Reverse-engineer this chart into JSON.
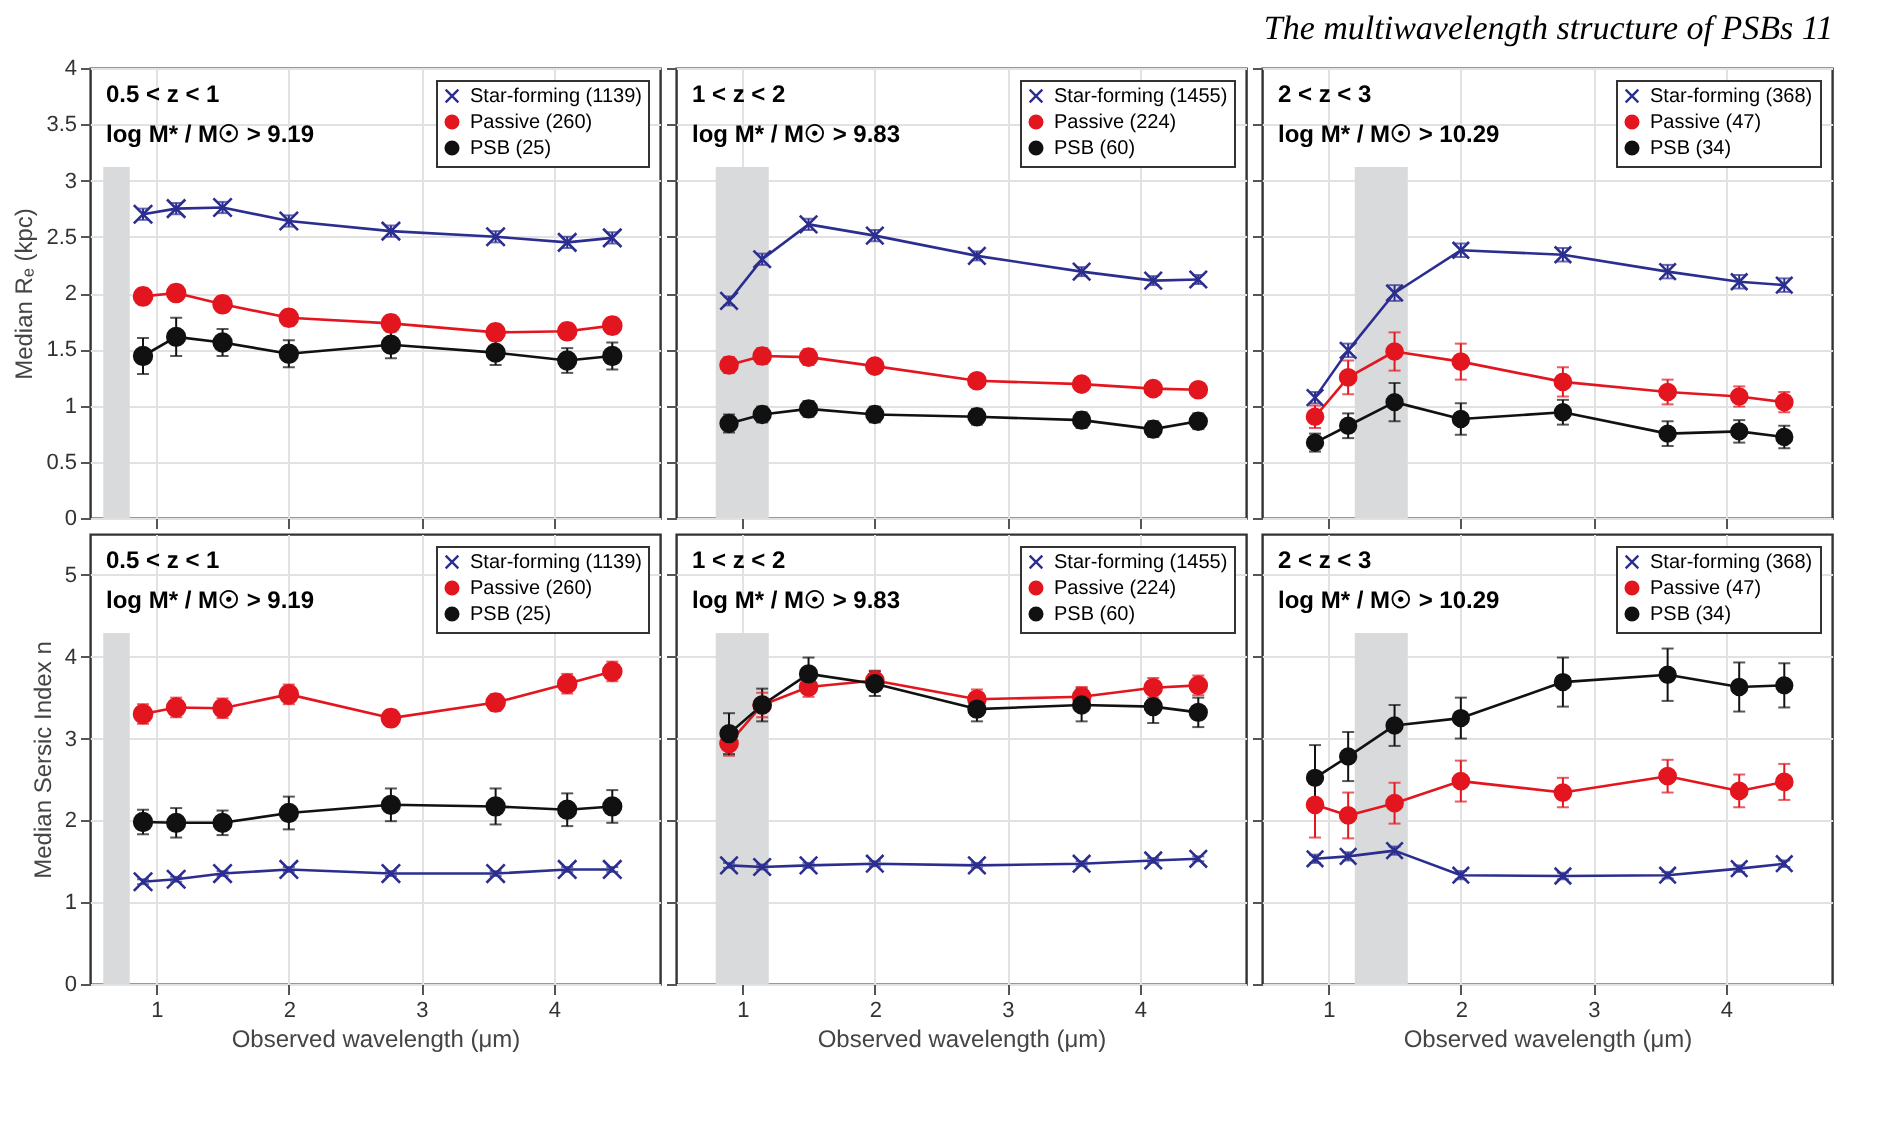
{
  "chart_data": [
    {
      "type": "line",
      "annotations": [
        "The multiwavelength structure of PSBs",
        "11",
        "0.5 < z < 1",
        "log M* / M☉ > 9.19"
      ],
      "ylabel": "Median Rₑ (kpc)",
      "x": [
        0.9,
        1.15,
        1.5,
        2.0,
        2.77,
        3.56,
        4.1,
        4.44
      ],
      "xlim": [
        0.5,
        4.8
      ],
      "xticks": [
        1,
        2,
        3,
        4
      ],
      "ylim": [
        0,
        4
      ],
      "yticks": [
        0,
        0.5,
        1,
        1.5,
        2,
        2.5,
        3,
        3.5,
        4
      ],
      "grid": true,
      "legend": "top right",
      "tick_labels": "y",
      "bands": [
        {
          "axis": "x",
          "from": 0.6,
          "to": 0.8,
          "color": "#d9dadc"
        }
      ],
      "series": [
        {
          "name": "Star-forming (1139)",
          "color": "#2b2e8f",
          "marker": "cross",
          "values": [
            2.7,
            2.75,
            2.76,
            2.64,
            2.55,
            2.5,
            2.45,
            2.49
          ],
          "errors": [
            0.05,
            0.05,
            0.05,
            0.05,
            0.05,
            0.05,
            0.05,
            0.05
          ]
        },
        {
          "name": "Passive (260)",
          "color": "#e3161f",
          "marker": "circle",
          "values": [
            1.97,
            2.0,
            1.9,
            1.78,
            1.73,
            1.65,
            1.66,
            1.71
          ],
          "errors": [
            0.07,
            0.07,
            0.07,
            0.07,
            0.07,
            0.07,
            0.07,
            0.07
          ]
        },
        {
          "name": "PSB (25)",
          "color": "#111111",
          "marker": "circle",
          "values": [
            1.44,
            1.61,
            1.56,
            1.46,
            1.54,
            1.47,
            1.4,
            1.44
          ],
          "errors": [
            0.16,
            0.17,
            0.12,
            0.12,
            0.12,
            0.11,
            0.11,
            0.12
          ]
        }
      ]
    },
    {
      "type": "line",
      "annotations": [
        "1 < z < 2",
        "log M* / M☉ > 9.83"
      ],
      "x": [
        0.9,
        1.15,
        1.5,
        2.0,
        2.77,
        3.56,
        4.1,
        4.44
      ],
      "xlim": [
        0.5,
        4.8
      ],
      "xticks": [
        1,
        2,
        3,
        4
      ],
      "ylim": [
        0,
        4
      ],
      "yticks": [
        0,
        0.5,
        1,
        1.5,
        2,
        2.5,
        3,
        3.5,
        4
      ],
      "grid": true,
      "legend": "top right",
      "tick_labels": false,
      "bands": [
        {
          "axis": "x",
          "from": 0.8,
          "to": 1.2,
          "color": "#d9dadc"
        }
      ],
      "series": [
        {
          "name": "Star-forming (1455)",
          "color": "#2b2e8f",
          "marker": "cross",
          "values": [
            1.93,
            2.3,
            2.61,
            2.51,
            2.33,
            2.19,
            2.11,
            2.12
          ],
          "errors": [
            0.04,
            0.05,
            0.05,
            0.05,
            0.04,
            0.04,
            0.04,
            0.04
          ]
        },
        {
          "name": "Passive (224)",
          "color": "#e3161f",
          "marker": "circle",
          "values": [
            1.36,
            1.44,
            1.43,
            1.35,
            1.22,
            1.19,
            1.15,
            1.14
          ],
          "errors": [
            0.07,
            0.07,
            0.07,
            0.06,
            0.06,
            0.05,
            0.05,
            0.05
          ]
        },
        {
          "name": "PSB (60)",
          "color": "#111111",
          "marker": "circle",
          "values": [
            0.84,
            0.92,
            0.97,
            0.92,
            0.9,
            0.87,
            0.79,
            0.86
          ],
          "errors": [
            0.08,
            0.07,
            0.07,
            0.07,
            0.07,
            0.07,
            0.07,
            0.07
          ]
        }
      ]
    },
    {
      "type": "line",
      "annotations": [
        "2 < z < 3",
        "log M* / M☉ > 10.29"
      ],
      "x": [
        0.9,
        1.15,
        1.5,
        2.0,
        2.77,
        3.56,
        4.1,
        4.44
      ],
      "xlim": [
        0.5,
        4.8
      ],
      "xticks": [
        1,
        2,
        3,
        4
      ],
      "ylim": [
        0,
        4
      ],
      "yticks": [
        0,
        0.5,
        1,
        1.5,
        2,
        2.5,
        3,
        3.5,
        4
      ],
      "grid": true,
      "legend": "top right",
      "tick_labels": false,
      "bands": [
        {
          "axis": "x",
          "from": 1.2,
          "to": 1.6,
          "color": "#d9dadc"
        }
      ],
      "series": [
        {
          "name": "Star-forming (368)",
          "color": "#2b2e8f",
          "marker": "cross",
          "values": [
            1.07,
            1.49,
            2.0,
            2.38,
            2.34,
            2.19,
            2.1,
            2.07
          ],
          "errors": [
            0.05,
            0.06,
            0.07,
            0.06,
            0.06,
            0.06,
            0.06,
            0.06
          ]
        },
        {
          "name": "Passive (47)",
          "color": "#e3161f",
          "marker": "circle",
          "values": [
            0.9,
            1.25,
            1.48,
            1.39,
            1.21,
            1.12,
            1.08,
            1.03
          ],
          "errors": [
            0.1,
            0.15,
            0.17,
            0.16,
            0.13,
            0.11,
            0.09,
            0.09
          ]
        },
        {
          "name": "PSB (34)",
          "color": "#111111",
          "marker": "circle",
          "values": [
            0.67,
            0.82,
            1.03,
            0.88,
            0.94,
            0.75,
            0.77,
            0.72
          ],
          "errors": [
            0.08,
            0.11,
            0.17,
            0.14,
            0.11,
            0.11,
            0.1,
            0.1
          ]
        }
      ]
    },
    {
      "type": "line",
      "annotations": [
        "0.5 < z < 1",
        "log M* / M☉ > 9.19"
      ],
      "ylabel": "Median Sersic Index  n",
      "xlabel": "Observed wavelength (μm)",
      "x": [
        0.9,
        1.15,
        1.5,
        2.0,
        2.77,
        3.56,
        4.1,
        4.44
      ],
      "xlim": [
        0.5,
        4.8
      ],
      "xticks": [
        1,
        2,
        3,
        4
      ],
      "ylim": [
        0,
        5.5
      ],
      "yticks": [
        0,
        1,
        2,
        3,
        4,
        5
      ],
      "grid": true,
      "legend": "top right",
      "bands": [
        {
          "axis": "x",
          "from": 0.6,
          "to": 0.8,
          "color": "#d9dadc"
        }
      ],
      "series": [
        {
          "name": "Star-forming (1139)",
          "color": "#2b2e8f",
          "marker": "cross",
          "values": [
            1.25,
            1.28,
            1.35,
            1.4,
            1.35,
            1.35,
            1.4,
            1.4
          ],
          "errors": [
            0.03,
            0.03,
            0.03,
            0.03,
            0.03,
            0.03,
            0.03,
            0.03
          ]
        },
        {
          "name": "Passive (260)",
          "color": "#e3161f",
          "marker": "circle",
          "values": [
            3.3,
            3.38,
            3.37,
            3.54,
            3.25,
            3.44,
            3.67,
            3.82
          ],
          "errors": [
            0.12,
            0.12,
            0.12,
            0.12,
            0.1,
            0.1,
            0.12,
            0.12
          ]
        },
        {
          "name": "PSB (25)",
          "color": "#111111",
          "marker": "circle",
          "values": [
            1.98,
            1.97,
            1.97,
            2.09,
            2.19,
            2.17,
            2.13,
            2.17
          ],
          "errors": [
            0.15,
            0.18,
            0.15,
            0.2,
            0.2,
            0.22,
            0.2,
            0.2
          ]
        }
      ]
    },
    {
      "type": "line",
      "annotations": [
        "1 < z < 2",
        "log M* / M☉ > 9.83"
      ],
      "xlabel": "Observed wavelength (μm)",
      "x": [
        0.9,
        1.15,
        1.5,
        2.0,
        2.77,
        3.56,
        4.1,
        4.44
      ],
      "xlim": [
        0.5,
        4.8
      ],
      "xticks": [
        1,
        2,
        3,
        4
      ],
      "ylim": [
        0,
        5.5
      ],
      "yticks": [
        0,
        1,
        2,
        3,
        4,
        5
      ],
      "grid": true,
      "legend": "top right",
      "tick_labels": "x",
      "bands": [
        {
          "axis": "x",
          "from": 0.8,
          "to": 1.2,
          "color": "#d9dadc"
        }
      ],
      "series": [
        {
          "name": "Star-forming (1455)",
          "color": "#2b2e8f",
          "marker": "cross",
          "values": [
            1.45,
            1.43,
            1.45,
            1.47,
            1.45,
            1.47,
            1.51,
            1.53
          ],
          "errors": [
            0.03,
            0.03,
            0.03,
            0.03,
            0.03,
            0.03,
            0.03,
            0.03
          ]
        },
        {
          "name": "Passive (224)",
          "color": "#e3161f",
          "marker": "circle",
          "values": [
            2.94,
            3.41,
            3.63,
            3.71,
            3.48,
            3.51,
            3.62,
            3.65
          ],
          "errors": [
            0.15,
            0.15,
            0.12,
            0.12,
            0.12,
            0.12,
            0.12,
            0.12
          ]
        },
        {
          "name": "PSB (60)",
          "color": "#111111",
          "marker": "circle",
          "values": [
            3.06,
            3.41,
            3.79,
            3.67,
            3.36,
            3.41,
            3.39,
            3.32
          ],
          "errors": [
            0.25,
            0.2,
            0.2,
            0.15,
            0.15,
            0.2,
            0.2,
            0.18
          ]
        }
      ]
    },
    {
      "type": "line",
      "annotations": [
        "2 < z < 3",
        "log M* / M☉ > 10.29"
      ],
      "xlabel": "Observed wavelength (μm)",
      "x": [
        0.9,
        1.15,
        1.5,
        2.0,
        2.77,
        3.56,
        4.1,
        4.44
      ],
      "xlim": [
        0.5,
        4.8
      ],
      "xticks": [
        1,
        2,
        3,
        4
      ],
      "ylim": [
        0,
        5.5
      ],
      "yticks": [
        0,
        1,
        2,
        3,
        4,
        5
      ],
      "grid": true,
      "legend": "top right",
      "tick_labels": "x",
      "bands": [
        {
          "axis": "x",
          "from": 1.2,
          "to": 1.6,
          "color": "#d9dadc"
        }
      ],
      "series": [
        {
          "name": "Star-forming (368)",
          "color": "#2b2e8f",
          "marker": "cross",
          "values": [
            1.53,
            1.56,
            1.63,
            1.33,
            1.32,
            1.33,
            1.41,
            1.47
          ],
          "errors": [
            0.05,
            0.05,
            0.05,
            0.05,
            0.04,
            0.04,
            0.04,
            0.04
          ]
        },
        {
          "name": "Passive (47)",
          "color": "#e3161f",
          "marker": "circle",
          "values": [
            2.19,
            2.06,
            2.21,
            2.48,
            2.34,
            2.54,
            2.36,
            2.47
          ],
          "errors": [
            0.4,
            0.28,
            0.25,
            0.25,
            0.18,
            0.2,
            0.2,
            0.22
          ]
        },
        {
          "name": "PSB (34)",
          "color": "#111111",
          "marker": "circle",
          "values": [
            2.52,
            2.78,
            3.16,
            3.25,
            3.69,
            3.78,
            3.63,
            3.65
          ],
          "errors": [
            0.4,
            0.3,
            0.25,
            0.25,
            0.3,
            0.32,
            0.3,
            0.27
          ]
        }
      ]
    }
  ]
}
